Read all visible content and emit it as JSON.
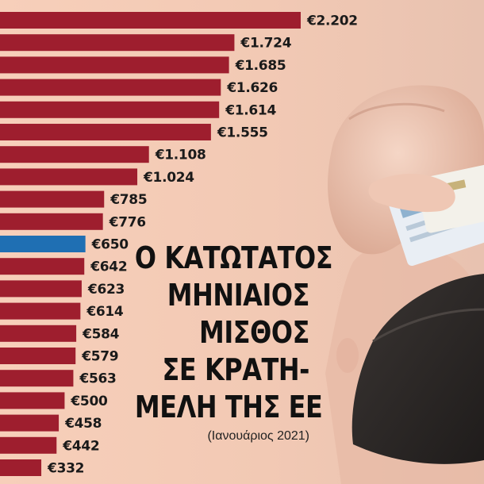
{
  "title_lines": [
    "Ο ΚΑΤΩΤΑΤΟΣ",
    "ΜΗΝΙΑΙΟΣ",
    "ΜΙΣΘΟΣ",
    "ΣΕ ΚΡΑΤΗ-",
    "ΜΕΛΗ ΤΗΣ ΕΕ"
  ],
  "subtitle": "(Ιανουάριος 2021)",
  "colors": {
    "bar": "#9e1e2e",
    "highlight": "#1f6fb3",
    "background": "#f6cdb7"
  },
  "chart_data": {
    "type": "bar",
    "orientation": "horizontal",
    "title": "Ο ΚΑΤΩΤΑΤΟΣ ΜΗΝΙΑΙΟΣ ΜΙΣΘΟΣ ΣΕ ΚΡΑΤΗ-ΜΕΛΗ ΤΗΣ ΕΕ",
    "subtitle": "(Ιανουάριος 2021)",
    "unit": "€",
    "xlim": [
      0,
      2202
    ],
    "grid": false,
    "legend": "none",
    "bars": [
      {
        "value": 2202,
        "label": "€2.202",
        "highlight": false
      },
      {
        "value": 1724,
        "label": "€1.724",
        "highlight": false
      },
      {
        "value": 1685,
        "label": "€1.685",
        "highlight": false
      },
      {
        "value": 1626,
        "label": "€1.626",
        "highlight": false
      },
      {
        "value": 1614,
        "label": "€1.614",
        "highlight": false
      },
      {
        "value": 1555,
        "label": "€1.555",
        "highlight": false
      },
      {
        "value": 1108,
        "label": "€1.108",
        "highlight": false
      },
      {
        "value": 1024,
        "label": "€1.024",
        "highlight": false
      },
      {
        "value": 785,
        "label": "€785",
        "highlight": false
      },
      {
        "value": 776,
        "label": "€776",
        "highlight": false
      },
      {
        "value": 650,
        "label": "€650",
        "highlight": true
      },
      {
        "value": 642,
        "label": "€642",
        "highlight": false
      },
      {
        "value": 623,
        "label": "€623",
        "highlight": false
      },
      {
        "value": 614,
        "label": "€614",
        "highlight": false
      },
      {
        "value": 584,
        "label": "€584",
        "highlight": false
      },
      {
        "value": 579,
        "label": "€579",
        "highlight": false
      },
      {
        "value": 563,
        "label": "€563",
        "highlight": false
      },
      {
        "value": 500,
        "label": "€500",
        "highlight": false
      },
      {
        "value": 458,
        "label": "€458",
        "highlight": false
      },
      {
        "value": 442,
        "label": "€442",
        "highlight": false
      },
      {
        "value": 332,
        "label": "€332",
        "highlight": false
      }
    ]
  }
}
